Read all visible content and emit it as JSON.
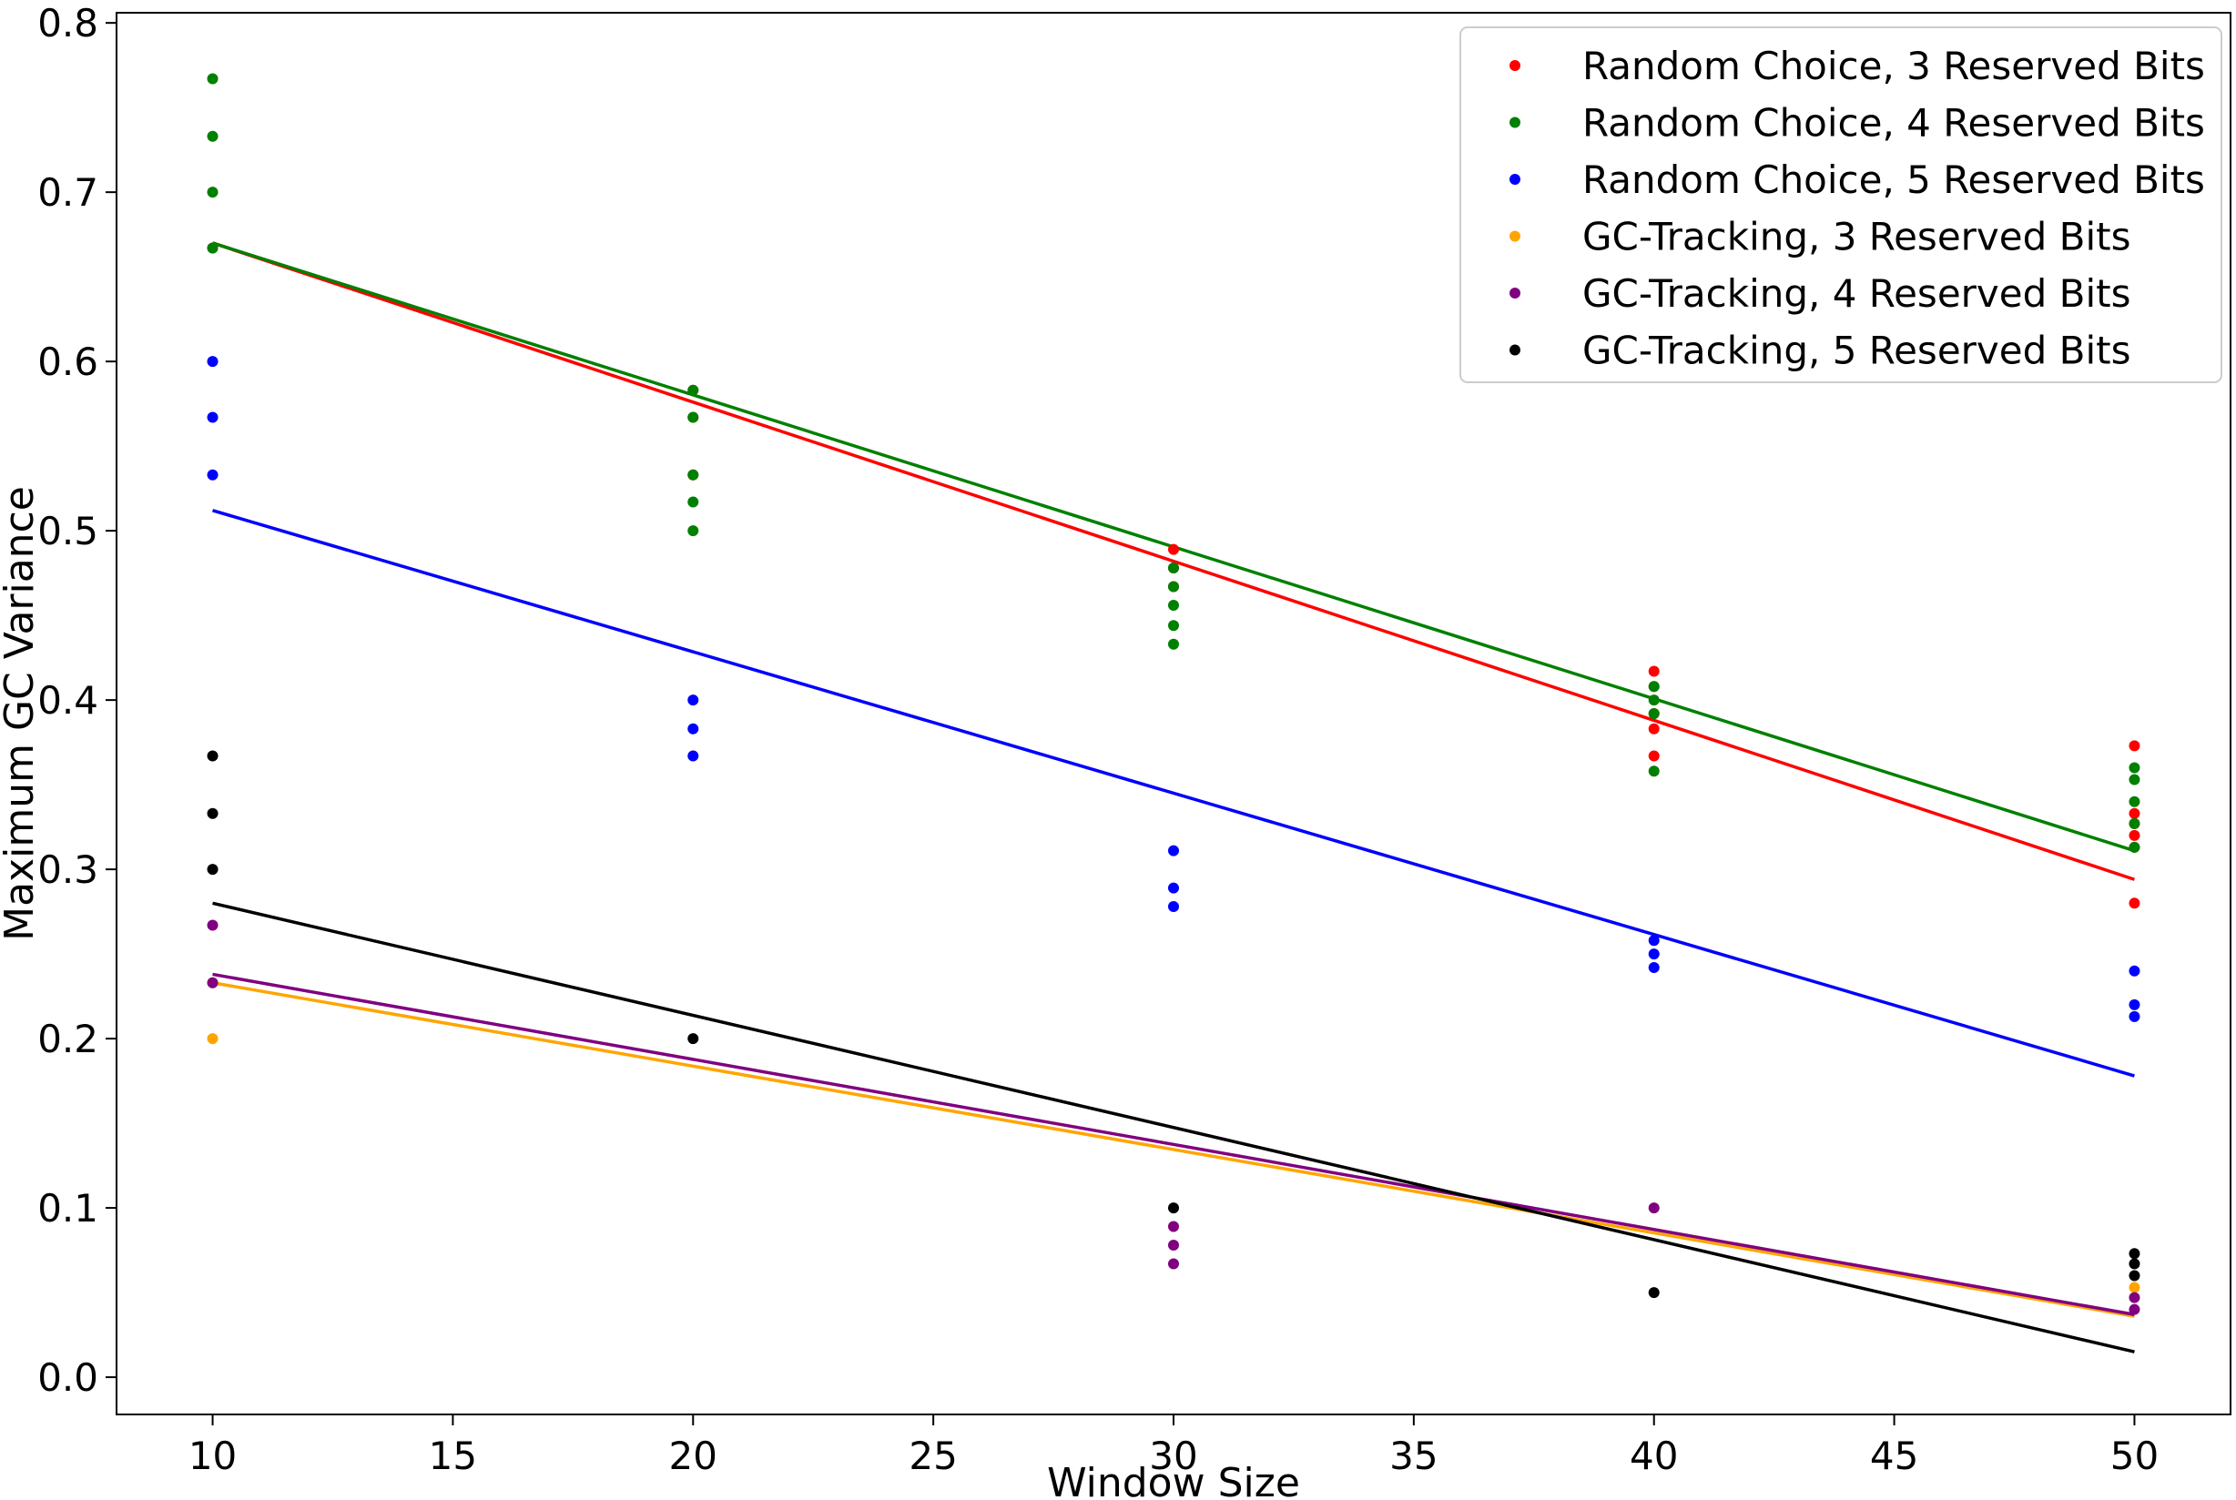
{
  "chart_data": {
    "type": "scatter",
    "title": "",
    "xlabel": "Window Size",
    "ylabel": "Maximum GC Variance",
    "xlim": [
      8,
      52
    ],
    "ylim": [
      -0.022,
      0.806
    ],
    "xticks": [
      10,
      15,
      20,
      25,
      30,
      35,
      40,
      45,
      50
    ],
    "xtick_labels": [
      "10",
      "15",
      "20",
      "25",
      "30",
      "35",
      "40",
      "45",
      "50"
    ],
    "yticks": [
      0.0,
      0.1,
      0.2,
      0.3,
      0.4,
      0.5,
      0.6,
      0.7,
      0.8
    ],
    "ytick_labels": [
      "0.0",
      "0.1",
      "0.2",
      "0.3",
      "0.4",
      "0.5",
      "0.6",
      "0.7",
      "0.8"
    ],
    "grid": false,
    "legend_position": "top-right",
    "series": [
      {
        "name": "Random Choice, 3 Reserved Bits",
        "color": "#ff0000",
        "points": [
          [
            10,
            0.667
          ],
          [
            20,
            0.583
          ],
          [
            20,
            0.567
          ],
          [
            20,
            0.533
          ],
          [
            30,
            0.489
          ],
          [
            30,
            0.478
          ],
          [
            30,
            0.467
          ],
          [
            40,
            0.417
          ],
          [
            40,
            0.408
          ],
          [
            40,
            0.392
          ],
          [
            40,
            0.383
          ],
          [
            40,
            0.367
          ],
          [
            50,
            0.373
          ],
          [
            50,
            0.333
          ],
          [
            50,
            0.327
          ],
          [
            50,
            0.32
          ],
          [
            50,
            0.313
          ],
          [
            50,
            0.28
          ]
        ],
        "fit": [
          [
            10,
            0.67
          ],
          [
            50,
            0.294
          ]
        ]
      },
      {
        "name": "Random Choice, 4 Reserved Bits",
        "color": "#008000",
        "points": [
          [
            10,
            0.767
          ],
          [
            10,
            0.733
          ],
          [
            10,
            0.7
          ],
          [
            10,
            0.667
          ],
          [
            20,
            0.583
          ],
          [
            20,
            0.567
          ],
          [
            20,
            0.533
          ],
          [
            20,
            0.517
          ],
          [
            20,
            0.5
          ],
          [
            30,
            0.478
          ],
          [
            30,
            0.467
          ],
          [
            30,
            0.456
          ],
          [
            30,
            0.444
          ],
          [
            30,
            0.433
          ],
          [
            40,
            0.408
          ],
          [
            40,
            0.4
          ],
          [
            40,
            0.392
          ],
          [
            40,
            0.358
          ],
          [
            50,
            0.36
          ],
          [
            50,
            0.353
          ],
          [
            50,
            0.34
          ],
          [
            50,
            0.327
          ],
          [
            50,
            0.313
          ]
        ],
        "fit": [
          [
            10,
            0.67
          ],
          [
            50,
            0.311
          ]
        ]
      },
      {
        "name": "Random Choice, 5 Reserved Bits",
        "color": "#0000ff",
        "points": [
          [
            10,
            0.6
          ],
          [
            10,
            0.567
          ],
          [
            10,
            0.533
          ],
          [
            20,
            0.4
          ],
          [
            20,
            0.383
          ],
          [
            20,
            0.367
          ],
          [
            30,
            0.311
          ],
          [
            30,
            0.289
          ],
          [
            30,
            0.278
          ],
          [
            40,
            0.258
          ],
          [
            40,
            0.25
          ],
          [
            40,
            0.242
          ],
          [
            50,
            0.24
          ],
          [
            50,
            0.22
          ],
          [
            50,
            0.213
          ]
        ],
        "fit": [
          [
            10,
            0.512
          ],
          [
            50,
            0.178
          ]
        ]
      },
      {
        "name": "GC-Tracking, 3 Reserved Bits",
        "color": "#ffa500",
        "points": [
          [
            10,
            0.233
          ],
          [
            10,
            0.2
          ],
          [
            50,
            0.053
          ]
        ],
        "fit": [
          [
            10,
            0.233
          ],
          [
            50,
            0.036
          ]
        ]
      },
      {
        "name": "GC-Tracking, 4 Reserved Bits",
        "color": "#800080",
        "points": [
          [
            10,
            0.267
          ],
          [
            10,
            0.233
          ],
          [
            30,
            0.089
          ],
          [
            30,
            0.078
          ],
          [
            30,
            0.067
          ],
          [
            40,
            0.1
          ],
          [
            50,
            0.047
          ],
          [
            50,
            0.04
          ]
        ],
        "fit": [
          [
            10,
            0.238
          ],
          [
            50,
            0.037
          ]
        ]
      },
      {
        "name": "GC-Tracking, 5 Reserved Bits",
        "color": "#000000",
        "points": [
          [
            10,
            0.367
          ],
          [
            10,
            0.333
          ],
          [
            10,
            0.3
          ],
          [
            20,
            0.2
          ],
          [
            30,
            0.1
          ],
          [
            40,
            0.05
          ],
          [
            50,
            0.073
          ],
          [
            50,
            0.067
          ],
          [
            50,
            0.06
          ]
        ],
        "fit": [
          [
            10,
            0.28
          ],
          [
            50,
            0.015
          ]
        ]
      }
    ]
  }
}
